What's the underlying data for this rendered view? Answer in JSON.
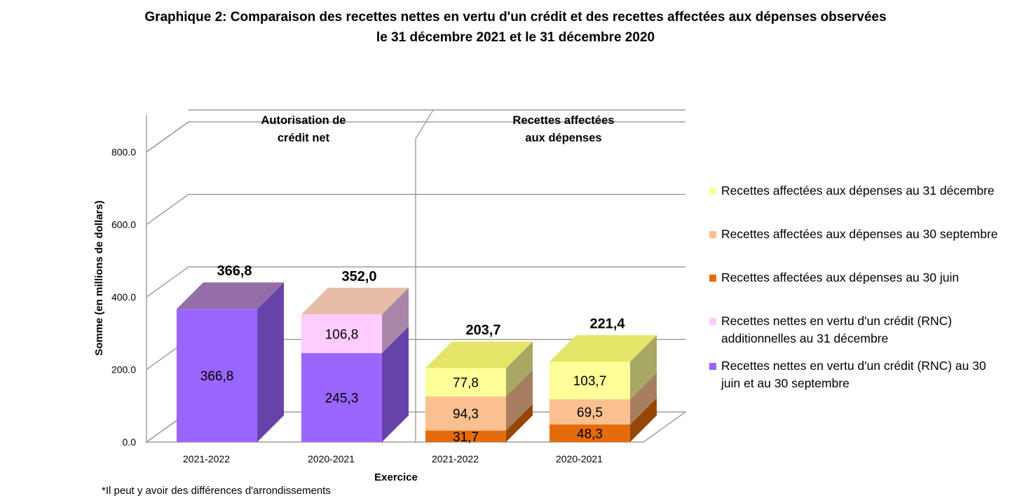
{
  "title_line1": "Graphique 2: Comparaison des recettes nettes en vertu d'un crédit et des recettes affectées aux dépenses observées",
  "title_line2": "le 31 décembre 2021 et le 31 décembre 2020",
  "footnote": "*Il peut y avoir des différences d'arrondissements",
  "chart_data": {
    "type": "bar",
    "stacked": true,
    "three_d": true,
    "ylabel": "Somme (en millions de dollars)",
    "xlabel": "Exercice",
    "ylim": [
      0,
      800
    ],
    "y_ticks": [
      "0.0",
      "200.0",
      "400.0",
      "600.0",
      "800.0"
    ],
    "grid": true,
    "legend_position": "right",
    "groups": [
      {
        "label": "Autorisation de crédit net",
        "lines": [
          "Autorisation de",
          "crédit net"
        ]
      },
      {
        "label": "Recettes affectées aux dépenses",
        "lines": [
          "Recettes affectées",
          "aux dépenses"
        ]
      }
    ],
    "categories": [
      "2021-2022",
      "2020-2021",
      "2021-2022",
      "2020-2021"
    ],
    "totals": [
      "366,8",
      "352,0",
      "203,7",
      "221,4"
    ],
    "series": [
      {
        "name": "Recettes nettes en vertu d'un crédit (RNC) au 30 juin et au 30 septembre",
        "legend_lines": [
          "Recettes nettes en vertu d'un crédit (RNC) au 30",
          "juin et au 30 septembre"
        ],
        "values": [
          366.8,
          245.3,
          null,
          null
        ],
        "labels": [
          "366,8",
          "245,3",
          "",
          ""
        ],
        "color": "#9966FF"
      },
      {
        "name": "Recettes nettes en vertu d'un crédit (RNC) additionnelles au 31 décembre",
        "legend_lines": [
          "Recettes nettes en vertu d'un crédit (RNC)",
          "additionnelles au 31 décembre"
        ],
        "values": [
          null,
          106.8,
          null,
          null
        ],
        "labels": [
          "",
          "106,8",
          "",
          ""
        ],
        "color": "#FFCCFF"
      },
      {
        "name": "Recettes affectées aux dépenses au 30 juin",
        "legend_lines": [
          "Recettes affectées aux dépenses au 30 juin"
        ],
        "values": [
          null,
          null,
          31.7,
          48.3
        ],
        "labels": [
          "",
          "",
          "31,7",
          "48,3"
        ],
        "color": "#E46C0A"
      },
      {
        "name": "Recettes affectées aux dépenses au 30 septembre",
        "legend_lines": [
          "Recettes affectées aux dépenses au 30 septembre"
        ],
        "values": [
          null,
          null,
          94.3,
          69.5
        ],
        "labels": [
          "",
          "",
          "94,3",
          "69,5"
        ],
        "color": "#FAC090"
      },
      {
        "name": "Recettes affectées aux dépenses au 31 décembre",
        "legend_lines": [
          "Recettes affectées aux dépenses au 31 décembre"
        ],
        "values": [
          null,
          null,
          77.8,
          103.7
        ],
        "labels": [
          "",
          "",
          "77,8",
          "103,7"
        ],
        "color": "#FFFF99"
      }
    ]
  }
}
